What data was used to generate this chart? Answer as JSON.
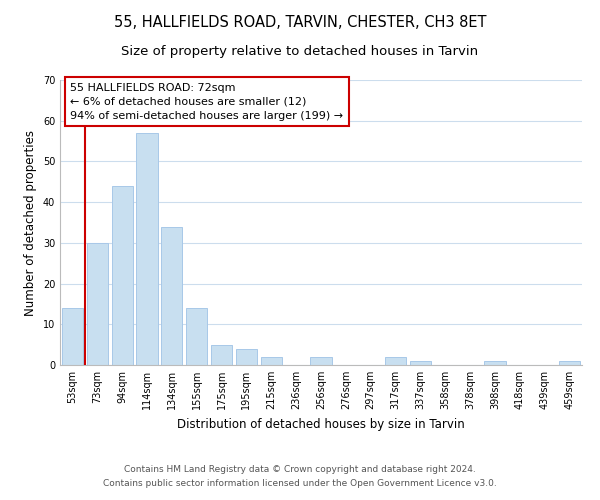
{
  "title": "55, HALLFIELDS ROAD, TARVIN, CHESTER, CH3 8ET",
  "subtitle": "Size of property relative to detached houses in Tarvin",
  "xlabel": "Distribution of detached houses by size in Tarvin",
  "ylabel": "Number of detached properties",
  "bar_labels": [
    "53sqm",
    "73sqm",
    "94sqm",
    "114sqm",
    "134sqm",
    "155sqm",
    "175sqm",
    "195sqm",
    "215sqm",
    "236sqm",
    "256sqm",
    "276sqm",
    "297sqm",
    "317sqm",
    "337sqm",
    "358sqm",
    "378sqm",
    "398sqm",
    "418sqm",
    "439sqm",
    "459sqm"
  ],
  "bar_values": [
    14,
    30,
    44,
    57,
    34,
    14,
    5,
    4,
    2,
    0,
    2,
    0,
    0,
    2,
    1,
    0,
    0,
    1,
    0,
    0,
    1
  ],
  "bar_color": "#c8dff0",
  "bar_edge_color": "#a8c8e8",
  "highlight_color": "#cc0000",
  "ylim": [
    0,
    70
  ],
  "yticks": [
    0,
    10,
    20,
    30,
    40,
    50,
    60,
    70
  ],
  "annotation_title": "55 HALLFIELDS ROAD: 72sqm",
  "annotation_line1": "← 6% of detached houses are smaller (12)",
  "annotation_line2": "94% of semi-detached houses are larger (199) →",
  "annotation_box_color": "#ffffff",
  "annotation_box_edge": "#cc0000",
  "footer_line1": "Contains HM Land Registry data © Crown copyright and database right 2024.",
  "footer_line2": "Contains public sector information licensed under the Open Government Licence v3.0.",
  "background_color": "#ffffff",
  "grid_color": "#ccdded",
  "title_fontsize": 10.5,
  "subtitle_fontsize": 9.5,
  "axis_label_fontsize": 8.5,
  "tick_fontsize": 7,
  "annotation_fontsize": 8,
  "footer_fontsize": 6.5
}
